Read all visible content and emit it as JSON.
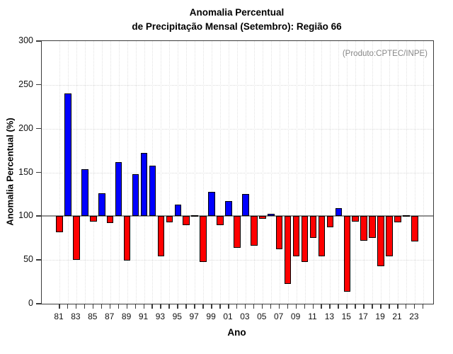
{
  "title": {
    "line1": "Anomalia Percentual",
    "line2": "de Precipitação Mensal (Setembro): Região 66"
  },
  "annotation": "(Produto:CPTEC/INPE)",
  "chart_data": {
    "type": "bar",
    "title": "Anomalia Percentual de Precipitação Mensal (Setembro): Região 66",
    "xlabel": "Ano",
    "ylabel": "Anomalia Percentual (%)",
    "ylim": [
      0,
      300
    ],
    "yticks": [
      0,
      50,
      100,
      150,
      200,
      250,
      300
    ],
    "baseline": 100,
    "grid": {
      "horizontal_dotted": [
        50,
        150,
        200,
        250
      ],
      "vertical_dotted_every_year": true,
      "solid_line_at": 100
    },
    "legend": "none",
    "colors": {
      "above_baseline": "#0000FF",
      "below_baseline": "#FF0000",
      "bar_border": "#000000",
      "baseline_line": "#8F8F8F",
      "annotation_text": "#878787"
    },
    "categories": [
      "81",
      "82",
      "83",
      "84",
      "85",
      "86",
      "87",
      "88",
      "89",
      "90",
      "91",
      "92",
      "93",
      "94",
      "95",
      "96",
      "97",
      "98",
      "99",
      "00",
      "01",
      "02",
      "03",
      "04",
      "05",
      "06",
      "07",
      "08",
      "09",
      "10",
      "11",
      "12",
      "13",
      "14",
      "15",
      "16",
      "17",
      "18",
      "19",
      "20",
      "21",
      "22",
      "23"
    ],
    "values": [
      82,
      240,
      50,
      154,
      94,
      126,
      92,
      162,
      49,
      148,
      172,
      158,
      54,
      93,
      113,
      90,
      101,
      48,
      128,
      90,
      117,
      64,
      125,
      66,
      97,
      103,
      62,
      23,
      54,
      48,
      75,
      54,
      87,
      109,
      14,
      94,
      72,
      75,
      43,
      54,
      93,
      101,
      71
    ],
    "x_labels_shown_every": 2
  }
}
